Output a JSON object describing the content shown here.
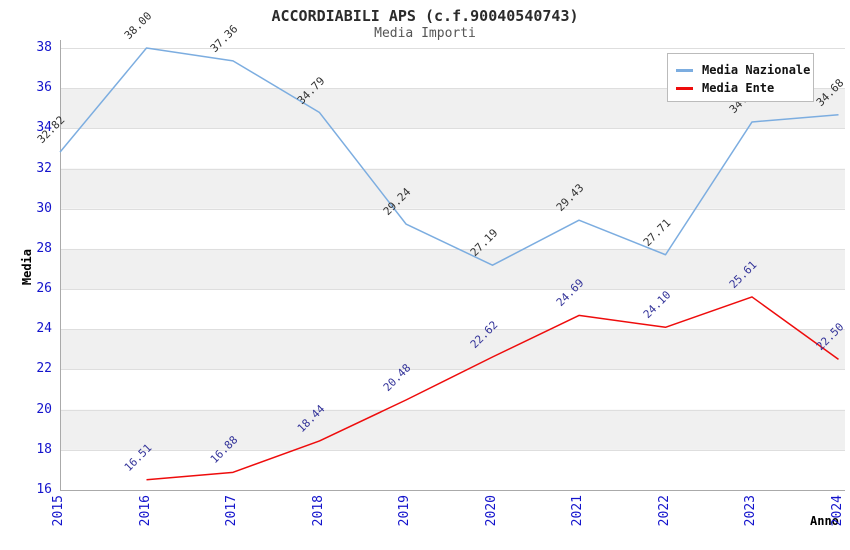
{
  "title": "ACCORDIABILI APS (c.f.90040540743)",
  "subtitle": "Media Importi",
  "chart_data": {
    "type": "line",
    "title": "ACCORDIABILI APS (c.f.90040540743)",
    "subtitle": "Media Importi",
    "xlabel": "Anno",
    "ylabel": "Media",
    "x_categories": [
      2015,
      2016,
      2017,
      2018,
      2019,
      2020,
      2021,
      2022,
      2023,
      2024
    ],
    "yticks": [
      16,
      18,
      20,
      22,
      24,
      26,
      28,
      30,
      32,
      34,
      36,
      38
    ],
    "ylim": [
      16,
      38.4
    ],
    "grid": "horizontal-bands-alternating",
    "legend_position": "top-right",
    "series": [
      {
        "name": "Media Nazionale",
        "color": "#7cade0",
        "label_color": "#333333",
        "x": [
          2015,
          2016,
          2017,
          2018,
          2019,
          2020,
          2021,
          2022,
          2023,
          2024
        ],
        "values": [
          32.82,
          38.0,
          37.36,
          34.79,
          29.24,
          27.19,
          29.43,
          27.71,
          34.32,
          34.68
        ]
      },
      {
        "name": "Media Ente",
        "color": "#ee0c0c",
        "label_color": "#333399",
        "x": [
          2016,
          2017,
          2018,
          2019,
          2020,
          2021,
          2022,
          2023,
          2024
        ],
        "values": [
          16.51,
          16.88,
          18.44,
          20.48,
          22.62,
          24.69,
          24.1,
          25.61,
          22.5
        ]
      }
    ],
    "colors": {
      "tick_label": "#1414cc",
      "band_gray": "#f0f0f0",
      "gridline": "#dedede",
      "axis_line": "#aaaaaa",
      "title_text": "#2b2b2b",
      "subtitle_text": "#555555"
    }
  }
}
